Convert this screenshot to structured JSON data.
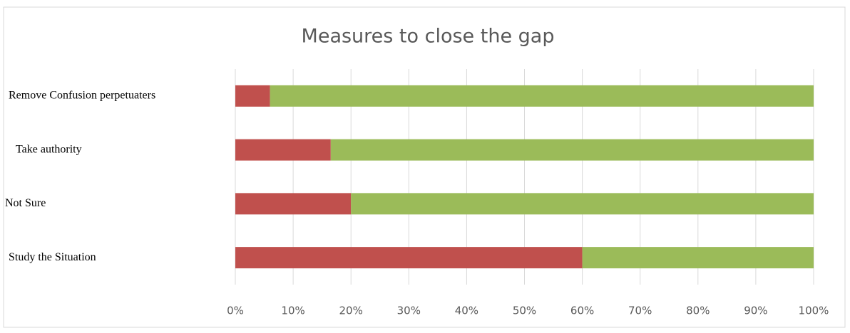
{
  "chart_data": {
    "type": "stacked-barh",
    "title": "Measures to close the gap",
    "categories": [
      "Remove Confusion perpetuaters",
      "Take authority",
      "Not Sure",
      "Study the Situation"
    ],
    "series": [
      {
        "color": "#c0504d",
        "values": [
          6,
          16.5,
          20,
          60
        ]
      },
      {
        "color": "#9bbb59",
        "values": [
          94,
          83.5,
          80,
          40
        ]
      }
    ],
    "xlim": [
      0,
      100
    ],
    "xticks": [
      {
        "value": 0,
        "label": "0%"
      },
      {
        "value": 10,
        "label": "10%"
      },
      {
        "value": 20,
        "label": "20%"
      },
      {
        "value": 30,
        "label": "30%"
      },
      {
        "value": 40,
        "label": "40%"
      },
      {
        "value": 50,
        "label": "50%"
      },
      {
        "value": 60,
        "label": "60%"
      },
      {
        "value": 70,
        "label": "70%"
      },
      {
        "value": 80,
        "label": "80%"
      },
      {
        "value": 90,
        "label": "90%"
      },
      {
        "value": 100,
        "label": "100%"
      }
    ],
    "grid": true
  }
}
